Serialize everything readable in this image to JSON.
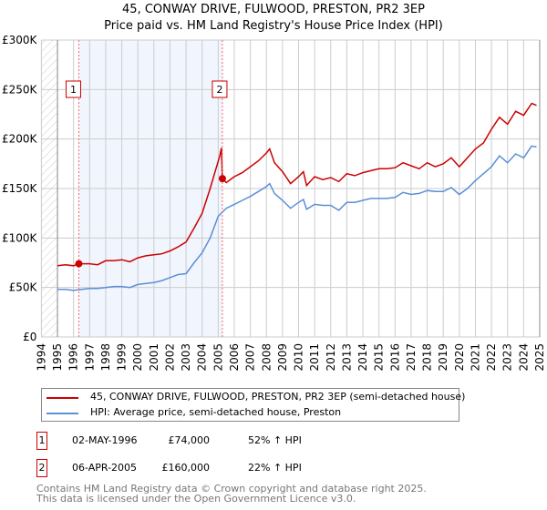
{
  "chart_data": {
    "type": "line",
    "title": "45, CONWAY DRIVE, FULWOOD, PRESTON, PR2 3EP",
    "subtitle": "Price paid vs. HM Land Registry's House Price Index (HPI)",
    "xlabel": "",
    "ylabel": "",
    "xlim": [
      1994,
      2025
    ],
    "ylim": [
      0,
      300000
    ],
    "x_ticks": [
      "1994",
      "1995",
      "1996",
      "1997",
      "1998",
      "1999",
      "2000",
      "2001",
      "2002",
      "2003",
      "2004",
      "2005",
      "2006",
      "2007",
      "2008",
      "2009",
      "2010",
      "2011",
      "2012",
      "2013",
      "2014",
      "2015",
      "2016",
      "2017",
      "2018",
      "2019",
      "2020",
      "2021",
      "2022",
      "2023",
      "2024",
      "2025"
    ],
    "y_ticks": [
      {
        "v": 0,
        "label": "£0"
      },
      {
        "v": 50000,
        "label": "£50K"
      },
      {
        "v": 100000,
        "label": "£100K"
      },
      {
        "v": 150000,
        "label": "£150K"
      },
      {
        "v": 200000,
        "label": "£200K"
      },
      {
        "v": 250000,
        "label": "£250K"
      },
      {
        "v": 300000,
        "label": "£300K"
      }
    ],
    "grid": true,
    "series": [
      {
        "name": "45, CONWAY DRIVE, FULWOOD, PRESTON, PR2 3EP (semi-detached house)",
        "color": "#cc0000",
        "x": [
          1995,
          1995.5,
          1996,
          1996.33,
          1997,
          1997.5,
          1998,
          1998.5,
          1999,
          1999.5,
          2000,
          2000.5,
          2001,
          2001.5,
          2002,
          2002.5,
          2003,
          2003.5,
          2004,
          2004.5,
          2005.1,
          2005.2,
          2005.26,
          2005.5,
          2006,
          2006.5,
          2007,
          2007.5,
          2008,
          2008.2,
          2008.5,
          2009,
          2009.5,
          2010,
          2010.3,
          2010.5,
          2011,
          2011.5,
          2012,
          2012.5,
          2013,
          2013.5,
          2014,
          2014.5,
          2015,
          2015.5,
          2016,
          2016.5,
          2017,
          2017.5,
          2018,
          2018.5,
          2019,
          2019.5,
          2020,
          2020.5,
          2021,
          2021.5,
          2022,
          2022.5,
          2023,
          2023.5,
          2024,
          2024.5,
          2024.8
        ],
        "y": [
          72000,
          73000,
          72000,
          74000,
          74000,
          73000,
          77000,
          77000,
          78000,
          76000,
          80000,
          82000,
          83000,
          84000,
          87000,
          91000,
          96000,
          110000,
          125000,
          150000,
          183000,
          191000,
          160000,
          156000,
          162000,
          166000,
          172000,
          178000,
          186000,
          190000,
          176000,
          167000,
          155000,
          162000,
          167000,
          153000,
          162000,
          159000,
          161000,
          157000,
          165000,
          163000,
          166000,
          168000,
          170000,
          170000,
          171000,
          176000,
          173000,
          170000,
          176000,
          172000,
          175000,
          181000,
          172000,
          181000,
          190000,
          196000,
          210000,
          222000,
          215000,
          228000,
          224000,
          236000,
          234000
        ]
      },
      {
        "name": "HPI: Average price, semi-detached house, Preston",
        "color": "#5b8fd6",
        "x": [
          1995,
          1995.5,
          1996,
          1996.5,
          1997,
          1997.5,
          1998,
          1998.5,
          1999,
          1999.5,
          2000,
          2000.5,
          2001,
          2001.5,
          2002,
          2002.5,
          2003,
          2003.5,
          2004,
          2004.5,
          2005,
          2005.5,
          2006,
          2006.5,
          2007,
          2007.5,
          2008,
          2008.2,
          2008.5,
          2009,
          2009.5,
          2010,
          2010.3,
          2010.5,
          2011,
          2011.5,
          2012,
          2012.5,
          2013,
          2013.5,
          2014,
          2014.5,
          2015,
          2015.5,
          2016,
          2016.5,
          2017,
          2017.5,
          2018,
          2018.5,
          2019,
          2019.5,
          2020,
          2020.5,
          2021,
          2021.5,
          2022,
          2022.5,
          2023,
          2023.5,
          2024,
          2024.5,
          2024.8
        ],
        "y": [
          48000,
          48000,
          47000,
          48000,
          49000,
          49000,
          50000,
          51000,
          51000,
          50000,
          53000,
          54000,
          55000,
          57000,
          60000,
          63000,
          64000,
          75000,
          85000,
          100000,
          122000,
          130000,
          134000,
          138000,
          142000,
          147000,
          152000,
          155000,
          145000,
          138000,
          130000,
          136000,
          139000,
          129000,
          134000,
          133000,
          133000,
          128000,
          136000,
          136000,
          138000,
          140000,
          140000,
          140000,
          141000,
          146000,
          144000,
          145000,
          148000,
          147000,
          147000,
          151000,
          144000,
          150000,
          158000,
          165000,
          172000,
          183000,
          176000,
          185000,
          181000,
          193000,
          192000
        ]
      }
    ],
    "sales": [
      {
        "id": "1",
        "x": 1996.33,
        "y": 74000,
        "date": "02-MAY-1996",
        "price": "£74,000",
        "hpi": "52% ↑ HPI"
      },
      {
        "id": "2",
        "x": 2005.26,
        "y": 160000,
        "date": "06-APR-2005",
        "price": "£160,000",
        "hpi": "22% ↑ HPI"
      }
    ]
  },
  "footer": {
    "line1": "Contains HM Land Registry data © Crown copyright and database right 2025.",
    "line2": "This data is licensed under the Open Government Licence v3.0."
  }
}
